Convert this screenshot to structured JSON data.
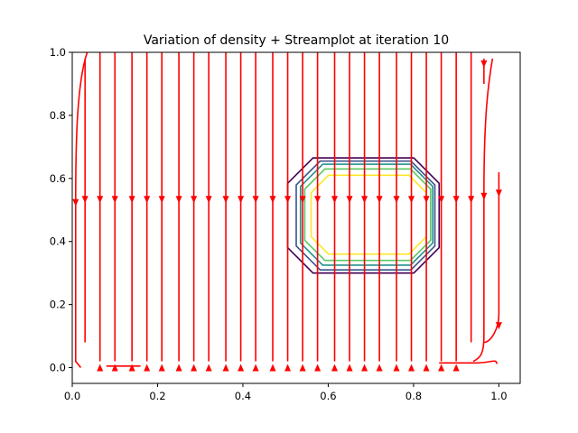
{
  "chart_data": {
    "type": "streamplot-contour",
    "title": "Variation of density + Streamplot at iteration 10",
    "xlabel": "",
    "ylabel": "",
    "xlim": [
      0.0,
      1.05
    ],
    "ylim": [
      -0.05,
      1.0
    ],
    "xticks": [
      0.0,
      0.2,
      0.4,
      0.6,
      0.8,
      1.0
    ],
    "xtick_labels": [
      "0.0",
      "0.2",
      "0.4",
      "0.6",
      "0.8",
      "1.0"
    ],
    "yticks": [
      0.0,
      0.2,
      0.4,
      0.6,
      0.8,
      1.0
    ],
    "ytick_labels": [
      "0.0",
      "0.2",
      "0.4",
      "0.6",
      "0.8",
      "1.0"
    ],
    "grid": false,
    "stream_color": "#ff0000",
    "stream_x_positions": [
      0.03,
      0.065,
      0.1,
      0.14,
      0.175,
      0.21,
      0.25,
      0.285,
      0.32,
      0.36,
      0.395,
      0.43,
      0.47,
      0.505,
      0.54,
      0.575,
      0.615,
      0.65,
      0.685,
      0.72,
      0.76,
      0.795,
      0.83,
      0.865,
      0.9,
      0.935
    ],
    "stream_direction": "downward",
    "contour_colors": [
      "#440154",
      "#3b528b",
      "#21908d",
      "#5dc963",
      "#fde725"
    ],
    "contour_levels": [
      {
        "xmin": 0.505,
        "xmax": 0.86,
        "ymin": 0.3,
        "ymax": 0.665
      },
      {
        "xmin": 0.525,
        "xmax": 0.85,
        "ymin": 0.31,
        "ymax": 0.655
      },
      {
        "xmin": 0.535,
        "xmax": 0.845,
        "ymin": 0.325,
        "ymax": 0.645
      },
      {
        "xmin": 0.545,
        "xmax": 0.84,
        "ymin": 0.34,
        "ymax": 0.63
      },
      {
        "xmin": 0.56,
        "xmax": 0.83,
        "ymin": 0.36,
        "ymax": 0.61
      }
    ]
  }
}
